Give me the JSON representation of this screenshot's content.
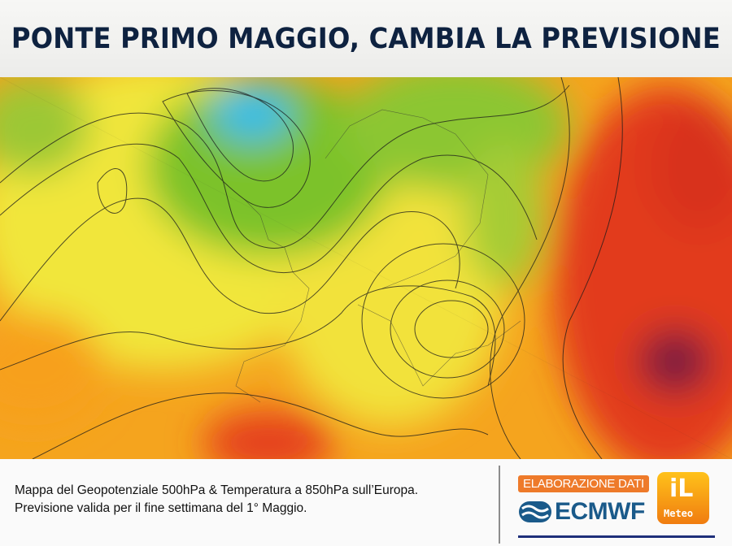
{
  "title": "PONTE PRIMO MAGGIO, CAMBIA LA PREVISIONE",
  "map": {
    "description_label": "",
    "colors": {
      "cold": "#2fc0ea",
      "cool": "#6fbf2a",
      "mild": "#f3ec3a",
      "warm": "#f7a21a",
      "hot": "#e8381a",
      "very_hot": "#7a1a3a"
    }
  },
  "caption": {
    "line1": "Mappa del Geopotenziale 500hPa & Temperatura a 850hPa sull’Europa.",
    "line2": "Previsione valida per il fine settimana del 1° Maggio."
  },
  "branding": {
    "elaborazione": "ELABORAZIONE DATI",
    "ecmwf": "ECMWF",
    "ilmeteo_logo": "iL Meteo"
  }
}
